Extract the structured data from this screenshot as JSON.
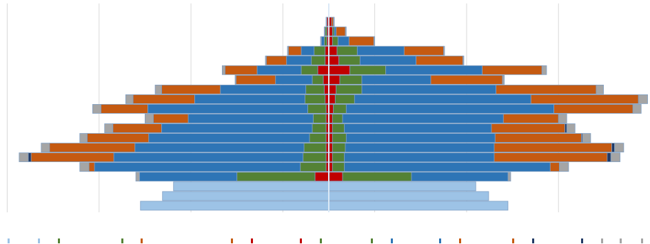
{
  "chart_data": {
    "type": "bar",
    "orientation": "horizontal",
    "layout": "diverging-stacked",
    "title": "",
    "xlabel": "",
    "ylabel": "",
    "xlim": [
      -350,
      350
    ],
    "grid": true,
    "legend": "bottom",
    "legend_entries_visible": false,
    "colors": {
      "light_blue": "#9dc3e6",
      "gray": "#a5a5a5",
      "dark_blue": "#2e75b6",
      "orange": "#c55a11",
      "green": "#548235",
      "red": "#c00000",
      "navy": "#203864"
    },
    "series_order": [
      "red",
      "green",
      "dark_blue",
      "orange",
      "navy",
      "gray"
    ],
    "legend_markers": [
      "light_blue",
      "light_blue",
      "green",
      "green",
      "orange",
      "orange",
      "red",
      "red",
      "green",
      "green",
      "dark_blue",
      "dark_blue",
      "orange",
      "orange",
      "navy",
      "navy",
      "gray",
      "gray",
      "gray"
    ],
    "rows": [
      {
        "left": {
          "red": 2,
          "green": 0,
          "dark_blue": 0,
          "orange": 0,
          "navy": 0,
          "gray": 1
        },
        "right": {
          "red": 3,
          "green": 0,
          "dark_blue": 0,
          "orange": 2,
          "navy": 0,
          "gray": 1
        }
      },
      {
        "left": {
          "red": 2,
          "green": 2,
          "dark_blue": 0,
          "orange": 0,
          "navy": 0,
          "gray": 1
        },
        "right": {
          "red": 4,
          "green": 2,
          "dark_blue": 2,
          "orange": 10,
          "navy": 0,
          "gray": 1
        }
      },
      {
        "left": {
          "red": 2,
          "green": 3,
          "dark_blue": 3,
          "orange": 0,
          "navy": 0,
          "gray": 1
        },
        "right": {
          "red": 4,
          "green": 6,
          "dark_blue": 12,
          "orange": 27,
          "navy": 0,
          "gray": 1
        }
      },
      {
        "left": {
          "red": 4,
          "green": 12,
          "dark_blue": 14,
          "orange": 14,
          "navy": 0,
          "gray": 1
        },
        "right": {
          "red": 9,
          "green": 22,
          "dark_blue": 51,
          "orange": 43,
          "navy": 0,
          "gray": 1
        }
      },
      {
        "left": {
          "red": 4,
          "green": 15,
          "dark_blue": 27,
          "orange": 22,
          "navy": 0,
          "gray": 1
        },
        "right": {
          "red": 11,
          "green": 23,
          "dark_blue": 61,
          "orange": 51,
          "navy": 0,
          "gray": 1
        }
      },
      {
        "left": {
          "red": 12,
          "green": 18,
          "dark_blue": 48,
          "orange": 35,
          "navy": 0,
          "gray": 3
        },
        "right": {
          "red": 23,
          "green": 39,
          "dark_blue": 105,
          "orange": 65,
          "navy": 0,
          "gray": 5
        }
      },
      {
        "left": {
          "red": 6,
          "green": 12,
          "dark_blue": 40,
          "orange": 43,
          "navy": 0,
          "gray": 1
        },
        "right": {
          "red": 12,
          "green": 24,
          "dark_blue": 75,
          "orange": 78,
          "navy": 0,
          "gray": 2
        }
      },
      {
        "left": {
          "red": 5,
          "green": 20,
          "dark_blue": 93,
          "orange": 64,
          "navy": 0,
          "gray": 7
        },
        "right": {
          "red": 8,
          "green": 28,
          "dark_blue": 146,
          "orange": 109,
          "navy": 0,
          "gray": 8
        }
      },
      {
        "left": {
          "red": 4,
          "green": 22,
          "dark_blue": 120,
          "orange": 67,
          "navy": 0,
          "gray": 8
        },
        "right": {
          "red": 7,
          "green": 21,
          "dark_blue": 192,
          "orange": 117,
          "navy": 0,
          "gray": 10
        }
      },
      {
        "left": {
          "red": 3,
          "green": 20,
          "dark_blue": 174,
          "orange": 51,
          "navy": 0,
          "gray": 9
        },
        "right": {
          "red": 5,
          "green": 14,
          "dark_blue": 226,
          "orange": 86,
          "navy": 0,
          "gray": 9
        }
      },
      {
        "left": {
          "red": 3,
          "green": 14,
          "dark_blue": 136,
          "orange": 38,
          "navy": 0,
          "gray": 9
        },
        "right": {
          "red": 4,
          "green": 11,
          "dark_blue": 175,
          "orange": 60,
          "navy": 0,
          "gray": 9
        }
      },
      {
        "left": {
          "red": 3,
          "green": 15,
          "dark_blue": 164,
          "orange": 53,
          "navy": 0,
          "gray": 9
        },
        "right": {
          "red": 4,
          "green": 13,
          "dark_blue": 160,
          "orange": 80,
          "navy": 2,
          "gray": 9
        }
      },
      {
        "left": {
          "red": 3,
          "green": 18,
          "dark_blue": 175,
          "orange": 67,
          "navy": 0,
          "gray": 8
        },
        "right": {
          "red": 4,
          "green": 15,
          "dark_blue": 162,
          "orange": 94,
          "navy": 1,
          "gray": 9
        }
      },
      {
        "left": {
          "red": 3,
          "green": 24,
          "dark_blue": 184,
          "orange": 93,
          "navy": 0,
          "gray": 9
        },
        "right": {
          "red": 4,
          "green": 14,
          "dark_blue": 162,
          "orange": 128,
          "navy": 3,
          "gray": 10
        }
      },
      {
        "left": {
          "red": 3,
          "green": 25,
          "dark_blue": 206,
          "orange": 90,
          "navy": 3,
          "gray": 10
        },
        "right": {
          "red": 4,
          "green": 13,
          "dark_blue": 163,
          "orange": 123,
          "navy": 4,
          "gray": 10
        }
      },
      {
        "left": {
          "red": 3,
          "green": 28,
          "dark_blue": 224,
          "orange": 6,
          "navy": 0,
          "gray": 10
        },
        "right": {
          "red": 4,
          "green": 13,
          "dark_blue": 224,
          "orange": 10,
          "navy": 0,
          "gray": 10
        }
      },
      {
        "left": {
          "red": 15,
          "green": 85,
          "dark_blue": 106,
          "orange": 0,
          "navy": 0,
          "gray": 4
        },
        "right": {
          "red": 15,
          "green": 75,
          "dark_blue": 105,
          "orange": 0,
          "navy": 0,
          "gray": 3
        }
      },
      {
        "left": {
          "light_blue": 169
        },
        "right": {
          "light_blue": 160
        }
      },
      {
        "left": {
          "light_blue": 181
        },
        "right": {
          "light_blue": 174
        }
      },
      {
        "left": {
          "light_blue": 205
        },
        "right": {
          "light_blue": 195
        }
      }
    ]
  }
}
